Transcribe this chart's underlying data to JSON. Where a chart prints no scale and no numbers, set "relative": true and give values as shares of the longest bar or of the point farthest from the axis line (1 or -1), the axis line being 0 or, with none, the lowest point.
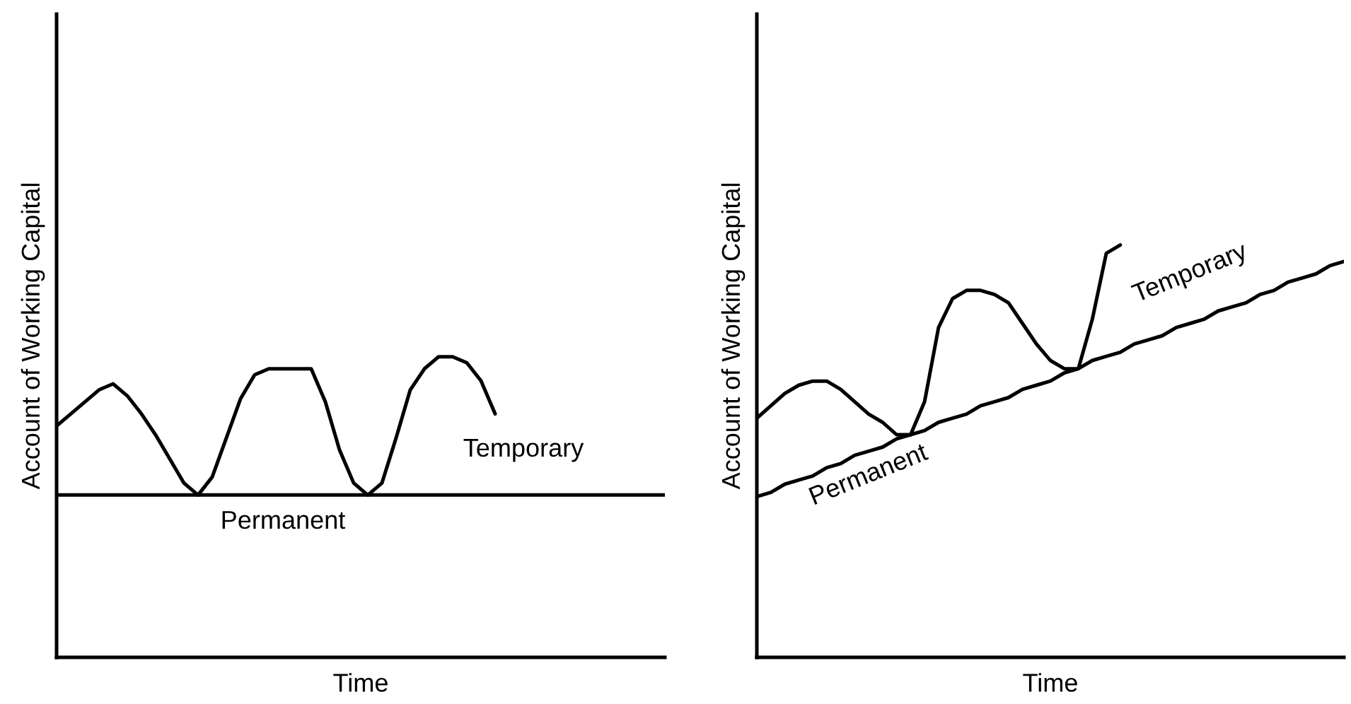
{
  "chart_data": [
    {
      "type": "line",
      "relative": true,
      "xlabel": "Time",
      "ylabel": "Account of Working Capital",
      "legend": false,
      "marker": "none",
      "line_style": "solid",
      "categories": [
        null,
        null,
        null,
        null,
        null,
        null,
        null,
        null,
        null,
        null,
        null,
        null,
        null,
        null,
        null,
        null,
        null,
        null,
        null,
        null,
        null,
        null,
        null,
        null,
        null,
        null,
        null,
        null,
        null,
        null,
        null,
        null,
        null,
        null,
        null,
        null,
        null,
        null,
        null,
        null,
        null,
        null,
        null,
        null
      ],
      "series": [
        {
          "name": "Temporary",
          "color": "#000000",
          "values": [
            0.77,
            0.81,
            0.85,
            0.89,
            0.91,
            0.87,
            0.81,
            0.74,
            0.66,
            0.58,
            0.54,
            0.6,
            0.73,
            0.86,
            0.94,
            0.96,
            0.96,
            0.96,
            0.96,
            0.85,
            0.69,
            0.58,
            0.54,
            0.58,
            0.73,
            0.89,
            0.96,
            1.0,
            1.0,
            0.98,
            0.92,
            0.81,
            null,
            null,
            null,
            null,
            null,
            null,
            null,
            null,
            null,
            null,
            null,
            null
          ]
        },
        {
          "name": "Permanent",
          "color": "#000000",
          "values": [
            0.54,
            0.54,
            0.54,
            0.54,
            0.54,
            0.54,
            0.54,
            0.54,
            0.54,
            0.54,
            0.54,
            0.54,
            0.54,
            0.54,
            0.54,
            0.54,
            0.54,
            0.54,
            0.54,
            0.54,
            0.54,
            0.54,
            0.54,
            0.54,
            0.54,
            0.54,
            0.54,
            0.54,
            0.54,
            0.54,
            0.54,
            0.54,
            0.54,
            0.54,
            0.54,
            0.54,
            0.54,
            0.54,
            0.54,
            0.54,
            0.54,
            0.54,
            0.54,
            0.54
          ]
        }
      ]
    },
    {
      "type": "line",
      "relative": true,
      "xlabel": "Time",
      "ylabel": "Account of Working Capital",
      "legend": false,
      "marker": "none",
      "line_style": "solid",
      "categories": [
        null,
        null,
        null,
        null,
        null,
        null,
        null,
        null,
        null,
        null,
        null,
        null,
        null,
        null,
        null,
        null,
        null,
        null,
        null,
        null,
        null,
        null,
        null,
        null,
        null,
        null,
        null,
        null,
        null,
        null,
        null,
        null,
        null,
        null,
        null,
        null,
        null,
        null,
        null,
        null,
        null,
        null,
        null
      ],
      "series": [
        {
          "name": "Temporary",
          "color": "#000000",
          "values": [
            0.58,
            0.61,
            0.64,
            0.66,
            0.67,
            0.67,
            0.65,
            0.62,
            0.59,
            0.57,
            0.54,
            0.54,
            0.62,
            0.8,
            0.87,
            0.89,
            0.89,
            0.88,
            0.86,
            0.81,
            0.76,
            0.72,
            0.7,
            0.7,
            0.82,
            0.98,
            1.0,
            null,
            null,
            null,
            null,
            null,
            null,
            null,
            null,
            null,
            null,
            null,
            null,
            null,
            null,
            null,
            null
          ]
        },
        {
          "name": "Permanent",
          "color": "#000000",
          "values": [
            0.39,
            0.4,
            0.42,
            0.43,
            0.44,
            0.46,
            0.47,
            0.49,
            0.5,
            0.51,
            0.53,
            0.54,
            0.55,
            0.57,
            0.58,
            0.59,
            0.61,
            0.62,
            0.63,
            0.65,
            0.66,
            0.67,
            0.69,
            0.7,
            0.72,
            0.73,
            0.74,
            0.76,
            0.77,
            0.78,
            0.8,
            0.81,
            0.82,
            0.84,
            0.85,
            0.86,
            0.88,
            0.89,
            0.91,
            0.92,
            0.93,
            0.95,
            0.96
          ]
        }
      ]
    }
  ]
}
